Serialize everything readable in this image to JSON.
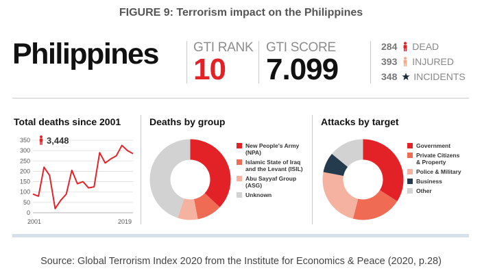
{
  "figure_title": "FIGURE 9: Terrorism impact on the Philippines",
  "country": "Philippines",
  "gti_rank_label": "GTI RANK",
  "gti_rank": "10",
  "gti_score_label": "GTI SCORE",
  "gti_score": "7.099",
  "stats": [
    {
      "value": "284",
      "icon": "person-icon",
      "color": "#e32227",
      "label": "DEAD"
    },
    {
      "value": "393",
      "icon": "person-icon",
      "color": "#f4a98a",
      "label": "INJURED"
    },
    {
      "value": "348",
      "icon": "star-icon",
      "color": "#1a2b3c",
      "label": "INCIDENTS"
    }
  ],
  "source": "Source: Global Terrorism Index 2020 from the Institute for Economics & Peace (2020, p.28)",
  "chart_data": [
    {
      "type": "line",
      "title": "Total deaths since 2001",
      "total_label": "3,448",
      "x": [
        2001,
        2002,
        2003,
        2004,
        2005,
        2006,
        2007,
        2008,
        2009,
        2010,
        2011,
        2012,
        2013,
        2014,
        2015,
        2016,
        2017,
        2018,
        2019
      ],
      "values": [
        90,
        80,
        220,
        180,
        20,
        60,
        90,
        205,
        140,
        150,
        120,
        125,
        290,
        240,
        260,
        275,
        325,
        300,
        285
      ],
      "ylim": [
        0,
        350
      ],
      "yticks": [
        "0",
        "50",
        "100",
        "150",
        "200",
        "250",
        "300",
        "350"
      ],
      "xtick_labels": [
        "2001",
        "2019"
      ],
      "color": "#e32227",
      "grid": true
    },
    {
      "type": "pie",
      "title": "Deaths by group",
      "labels": [
        "New People's Army (NPA)",
        "Islamic State of Iraq and the Levant (ISIL)",
        "Abu Sayyaf Group (ASG)",
        "Unknown"
      ],
      "legend_lines": [
        [
          "New People's Army",
          "(NPA)"
        ],
        [
          "Islamic State of Iraq",
          "and the Levant (ISIL)"
        ],
        [
          "Abu Sayyaf Group",
          "(ASG)"
        ],
        [
          "Unknown"
        ]
      ],
      "values": [
        37,
        10,
        8,
        45
      ],
      "colors": [
        "#e32227",
        "#ef6b53",
        "#f5b2a0",
        "#d2d2d2"
      ]
    },
    {
      "type": "pie",
      "title": "Attacks by target",
      "labels": [
        "Government",
        "Private Citizens & Property",
        "Police & Military",
        "Business",
        "Other"
      ],
      "legend_lines": [
        [
          "Government"
        ],
        [
          "Private Citizens",
          "& Property"
        ],
        [
          "Police & Military"
        ],
        [
          "Business"
        ],
        [
          "Other"
        ]
      ],
      "values": [
        34,
        20,
        24,
        8,
        14
      ],
      "colors": [
        "#e32227",
        "#ef6b53",
        "#f5b2a0",
        "#243a4d",
        "#d2d2d2"
      ]
    }
  ]
}
